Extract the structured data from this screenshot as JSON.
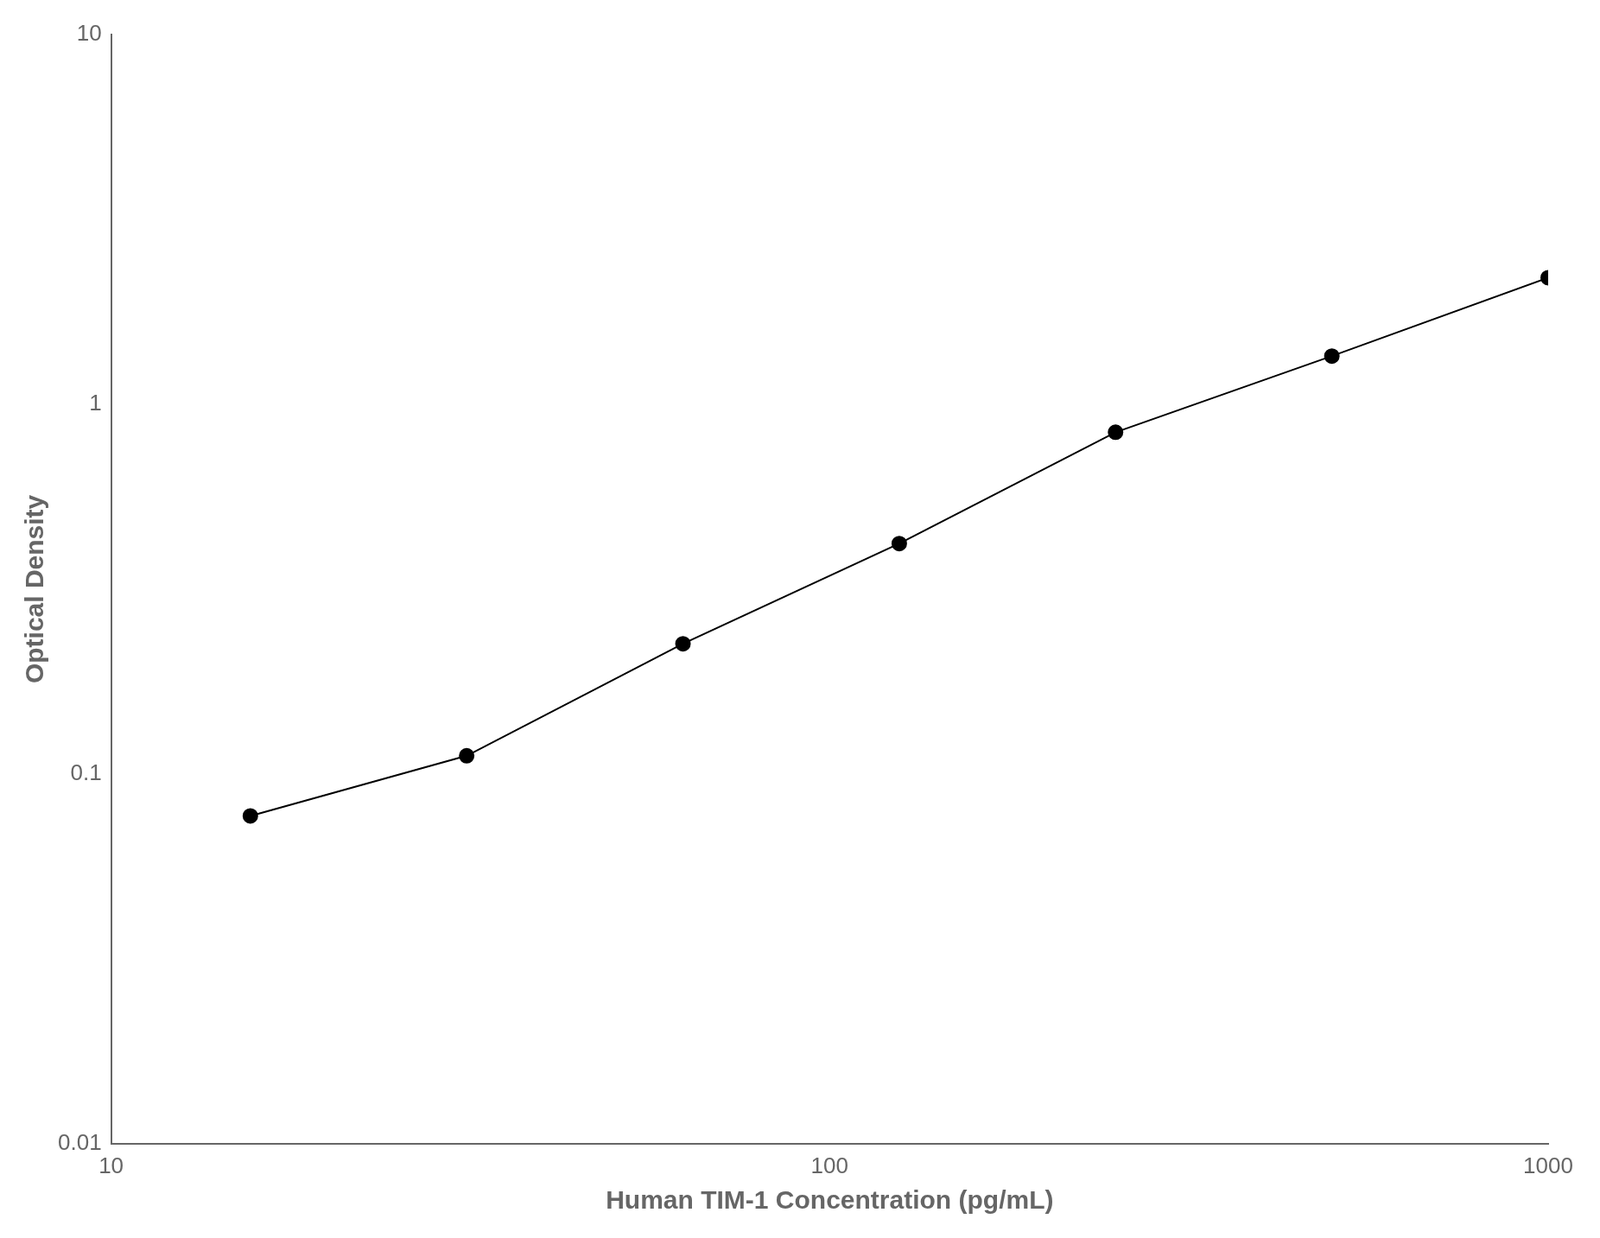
{
  "chart_data": {
    "type": "line",
    "x": [
      15.625,
      31.25,
      62.5,
      125,
      250,
      500,
      1000
    ],
    "values": [
      0.077,
      0.112,
      0.225,
      0.42,
      0.84,
      1.35,
      2.2
    ],
    "color": "#000000",
    "marker": "circle",
    "xlabel": "Human TIM-1 Concentration (pg/mL)",
    "ylabel": "Optical Density",
    "xlim": [
      10,
      1000
    ],
    "ylim": [
      0.01,
      10
    ],
    "xticks": [
      10,
      100,
      1000
    ],
    "yticks": [
      0.01,
      0.1,
      1,
      10
    ],
    "log": true,
    "grid": false
  }
}
